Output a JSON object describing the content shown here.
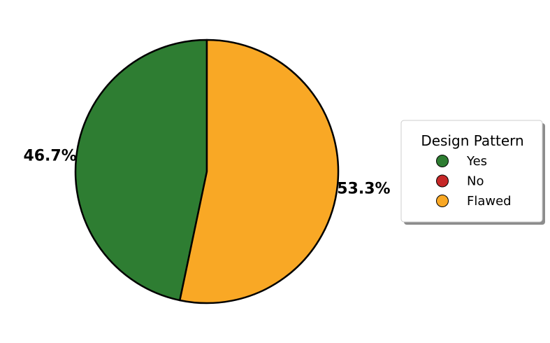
{
  "chart_data": {
    "type": "pie",
    "legend_title": "Design Pattern",
    "legend_position": "right",
    "slices": [
      {
        "label": "Yes",
        "value": 46.7,
        "display": "46.7%",
        "color": "#2e7d32"
      },
      {
        "label": "No",
        "value": 0,
        "display": "",
        "color": "#c62828"
      },
      {
        "label": "Flawed",
        "value": 53.3,
        "display": "53.3%",
        "color": "#f9a825"
      }
    ]
  }
}
